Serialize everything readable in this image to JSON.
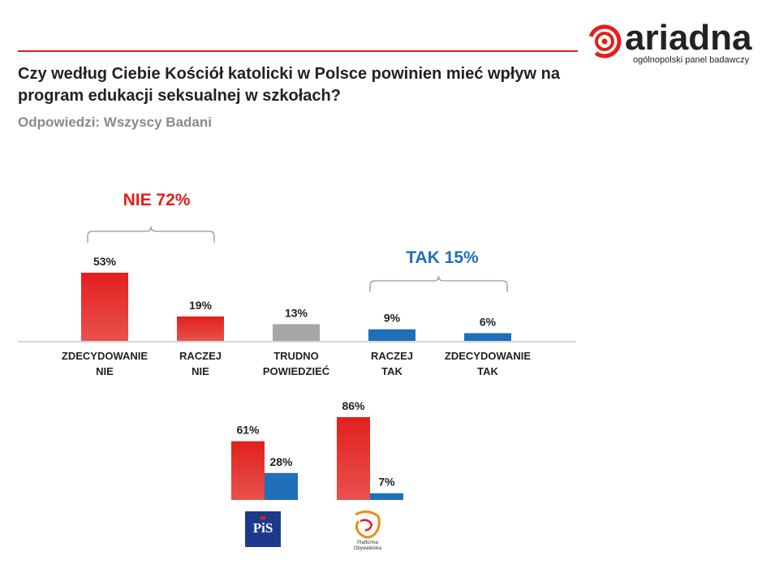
{
  "brand": {
    "name": "ariadna",
    "tagline": "ogólnopolski panel badawczy",
    "accent": "#e2201c"
  },
  "title": "Czy według Ciebie Kościół katolicki w Polsce powinien mieć wpływ na program edukacji seksualnej w szkołach?",
  "subtitle": "Odpowiedzi: Wszyscy Badani",
  "groups": {
    "nie": {
      "label": "NIE 72%",
      "color": "#e2201c"
    },
    "tak": {
      "label": "TAK 15%",
      "color": "#1f6fba"
    }
  },
  "chart_data": [
    {
      "type": "bar",
      "categories": [
        [
          "ZDECYDOWANIE",
          "NIE"
        ],
        [
          "RACZEJ",
          "NIE"
        ],
        [
          "TRUDNO",
          "POWIEDZIEĆ"
        ],
        [
          "RACZEJ",
          "TAK"
        ],
        [
          "ZDECYDOWANIE",
          "TAK"
        ]
      ],
      "values": [
        53,
        19,
        13,
        9,
        6
      ],
      "value_labels": [
        "53%",
        "19%",
        "13%",
        "9%",
        "6%"
      ],
      "colors": [
        "#e2201c",
        "#e2201c",
        "#a6a6a6",
        "#1f6fba",
        "#1f6fba"
      ]
    },
    {
      "type": "bar",
      "groups": [
        "PiS",
        "Platforma Obywatelska"
      ],
      "series": [
        {
          "values": [
            61,
            86
          ],
          "labels": [
            "61%",
            "86%"
          ],
          "color": "#e2201c"
        },
        {
          "values": [
            28,
            7
          ],
          "labels": [
            "28%",
            "7%"
          ],
          "color": "#1f6fba"
        }
      ]
    }
  ],
  "party_logos": {
    "pis": "PiS",
    "po": [
      "Platforma",
      "Obywatelska"
    ]
  }
}
